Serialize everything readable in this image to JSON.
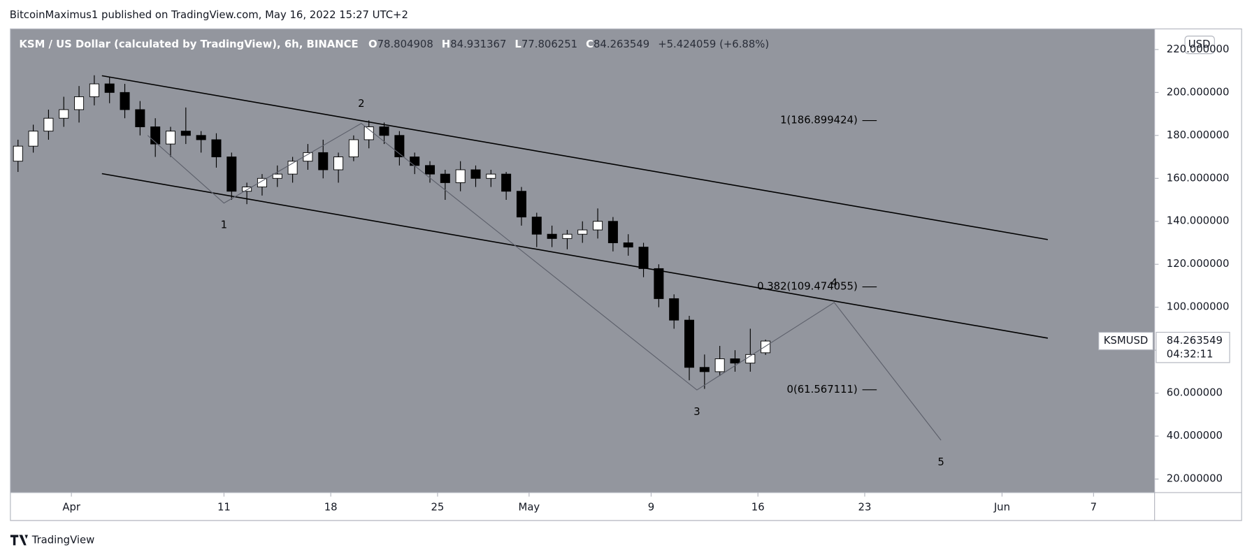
{
  "publisher": "BitcoinMaximus1 published on TradingView.com, May 16, 2022 15:27 UTC+2",
  "brand": "TradingView",
  "chart_data": {
    "type": "candlestick",
    "title": "KSM / US Dollar (calculated by TradingView), 6h, BINANCE",
    "header": {
      "o_label": "O",
      "open": "78.804908",
      "h_label": "H",
      "high": "84.931367",
      "l_label": "L",
      "low": "77.806251",
      "c_label": "C",
      "close": "84.263549",
      "change": "+5.424059 (+6.88%)"
    },
    "currency": "USD",
    "symbol": "KSMUSD",
    "last_price": 84.263549,
    "countdown": "04:32:11",
    "x": [
      "03-28",
      "03-29",
      "03-30",
      "03-31",
      "04-01",
      "04-02",
      "04-03",
      "04-04",
      "04-05",
      "04-06",
      "04-07",
      "04-08",
      "04-09",
      "04-10",
      "04-11",
      "04-12",
      "04-13",
      "04-14",
      "04-15",
      "04-16",
      "04-17",
      "04-18",
      "04-19",
      "04-20",
      "04-21",
      "04-22",
      "04-23",
      "04-24",
      "04-25",
      "04-26",
      "04-27",
      "04-28",
      "04-29",
      "04-30",
      "05-01",
      "05-02",
      "05-03",
      "05-04",
      "05-05",
      "05-06",
      "05-07",
      "05-08",
      "05-09",
      "05-10",
      "05-11",
      "05-12",
      "05-13",
      "05-14",
      "05-15",
      "05-16"
    ],
    "open": [
      168,
      175,
      182,
      188,
      192,
      198,
      204,
      200,
      192,
      184,
      176,
      182,
      180,
      178,
      170,
      154,
      156,
      160,
      162,
      168,
      172,
      164,
      170,
      178,
      184,
      180,
      170,
      166,
      162,
      158,
      164,
      160,
      162,
      154,
      142,
      134,
      132,
      134,
      136,
      140,
      130,
      128,
      118,
      104,
      94,
      72,
      70,
      76,
      74,
      78.804908
    ],
    "high": [
      178,
      185,
      192,
      198,
      203,
      208,
      207,
      204,
      196,
      188,
      184,
      193,
      182,
      181,
      172,
      158,
      162,
      166,
      170,
      176,
      178,
      172,
      180,
      187,
      186,
      182,
      172,
      168,
      164,
      168,
      166,
      164,
      163,
      156,
      144,
      138,
      136,
      140,
      146,
      142,
      134,
      130,
      120,
      106,
      96,
      78,
      82,
      80,
      90,
      84.931367
    ],
    "low": [
      163,
      172,
      178,
      184,
      186,
      194,
      195,
      188,
      180,
      170,
      170,
      176,
      172,
      165,
      150,
      148,
      152,
      156,
      158,
      164,
      160,
      158,
      168,
      174,
      176,
      166,
      162,
      158,
      150,
      154,
      156,
      156,
      150,
      138,
      128,
      128,
      127,
      130,
      132,
      126,
      124,
      114,
      100,
      90,
      66,
      62,
      68,
      70,
      70,
      77.806251
    ],
    "close": [
      175,
      182,
      188,
      192,
      198,
      204,
      200,
      192,
      184,
      176,
      182,
      180,
      178,
      170,
      154,
      156,
      160,
      162,
      168,
      172,
      164,
      170,
      178,
      184,
      180,
      170,
      166,
      162,
      158,
      164,
      160,
      162,
      154,
      142,
      134,
      132,
      134,
      136,
      140,
      130,
      128,
      118,
      104,
      94,
      72,
      70,
      76,
      74,
      78,
      84.263549
    ],
    "up_color": "#ffffff",
    "down_color": "#000000",
    "background": "#93969e",
    "xlim": [
      "03-28",
      "06-11"
    ],
    "xticks": [
      {
        "value": "04-01",
        "label": "Apr"
      },
      {
        "value": "04-11",
        "label": "11"
      },
      {
        "value": "04-18",
        "label": "18"
      },
      {
        "value": "04-25",
        "label": "25"
      },
      {
        "value": "05-01",
        "label": "May"
      },
      {
        "value": "05-09",
        "label": "9"
      },
      {
        "value": "05-16",
        "label": "16"
      },
      {
        "value": "05-23",
        "label": "23"
      },
      {
        "value": "06-01",
        "label": "Jun"
      },
      {
        "value": "06-07",
        "label": "7"
      }
    ],
    "ylim": [
      13.7,
      229.6
    ],
    "yticks": [
      {
        "value": 20,
        "label": "20.000000"
      },
      {
        "value": 40,
        "label": "40.000000"
      },
      {
        "value": 60,
        "label": "60.000000"
      },
      {
        "value": 80,
        "label": "80.000000"
      },
      {
        "value": 100,
        "label": "100.000000"
      },
      {
        "value": 120,
        "label": "120.000000"
      },
      {
        "value": 140,
        "label": "140.000000"
      },
      {
        "value": 160,
        "label": "160.000000"
      },
      {
        "value": 180,
        "label": "180.000000"
      },
      {
        "value": 200,
        "label": "200.000000"
      },
      {
        "value": 220,
        "label": "220.000000"
      }
    ],
    "trendlines": [
      {
        "x": [
          "04-03",
          "06-04"
        ],
        "y": [
          207.8,
          131.5
        ]
      },
      {
        "x": [
          "04-03",
          "06-04"
        ],
        "y": [
          162.2,
          85.6
        ]
      }
    ],
    "waves": {
      "x": [
        "04-06",
        "04-11",
        "04-20",
        "05-12",
        "05-21",
        "05-28"
      ],
      "y": [
        180,
        148.5,
        185.6,
        61.5,
        102.2,
        38.1
      ],
      "labels": [
        null,
        "1",
        "2",
        "3",
        "4",
        "5"
      ]
    },
    "fib_levels": [
      {
        "value": 186.899424,
        "label": "1(186.899424)"
      },
      {
        "value": 109.474055,
        "label": "0.382(109.474055)"
      },
      {
        "value": 61.567111,
        "label": "0(61.567111)"
      }
    ]
  }
}
